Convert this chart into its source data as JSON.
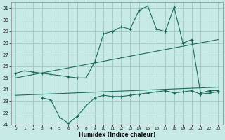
{
  "xlabel": "Humidex (Indice chaleur)",
  "xlim": [
    -0.5,
    23.5
  ],
  "ylim": [
    21,
    31.5
  ],
  "yticks": [
    21,
    22,
    23,
    24,
    25,
    26,
    27,
    28,
    29,
    30,
    31
  ],
  "xticks": [
    0,
    1,
    2,
    3,
    4,
    5,
    6,
    7,
    8,
    9,
    10,
    11,
    12,
    13,
    14,
    15,
    16,
    17,
    18,
    19,
    20,
    21,
    22,
    23
  ],
  "bg_color": "#c8eae6",
  "grid_color": "#a0c8c4",
  "line_color": "#1a6b5a",
  "line1_x": [
    0,
    1,
    2,
    3,
    4,
    5,
    6,
    7,
    8,
    9,
    10,
    11,
    12,
    13,
    14,
    15,
    16,
    17,
    18,
    19,
    20,
    21,
    22,
    23
  ],
  "line1_y": [
    25.4,
    25.6,
    25.5,
    25.4,
    25.3,
    25.2,
    25.1,
    25.0,
    25.0,
    26.4,
    28.8,
    29.0,
    29.4,
    29.2,
    30.8,
    31.2,
    29.2,
    29.0,
    31.1,
    28.0,
    28.3,
    23.7,
    23.9,
    23.9
  ],
  "line2_x": [
    0,
    23
  ],
  "line2_y": [
    25.0,
    28.3
  ],
  "line3_x": [
    0,
    23
  ],
  "line3_y": [
    23.5,
    24.2
  ],
  "line4_x": [
    3,
    4,
    5,
    6,
    7,
    8,
    9,
    10,
    11,
    12,
    13,
    14,
    15,
    16,
    17,
    18,
    19,
    20,
    21,
    22,
    23
  ],
  "line4_y": [
    23.3,
    23.1,
    21.6,
    21.1,
    21.7,
    22.6,
    23.3,
    23.5,
    23.4,
    23.4,
    23.5,
    23.6,
    23.7,
    23.8,
    23.9,
    23.7,
    23.8,
    23.9,
    23.6,
    23.7,
    23.8
  ]
}
